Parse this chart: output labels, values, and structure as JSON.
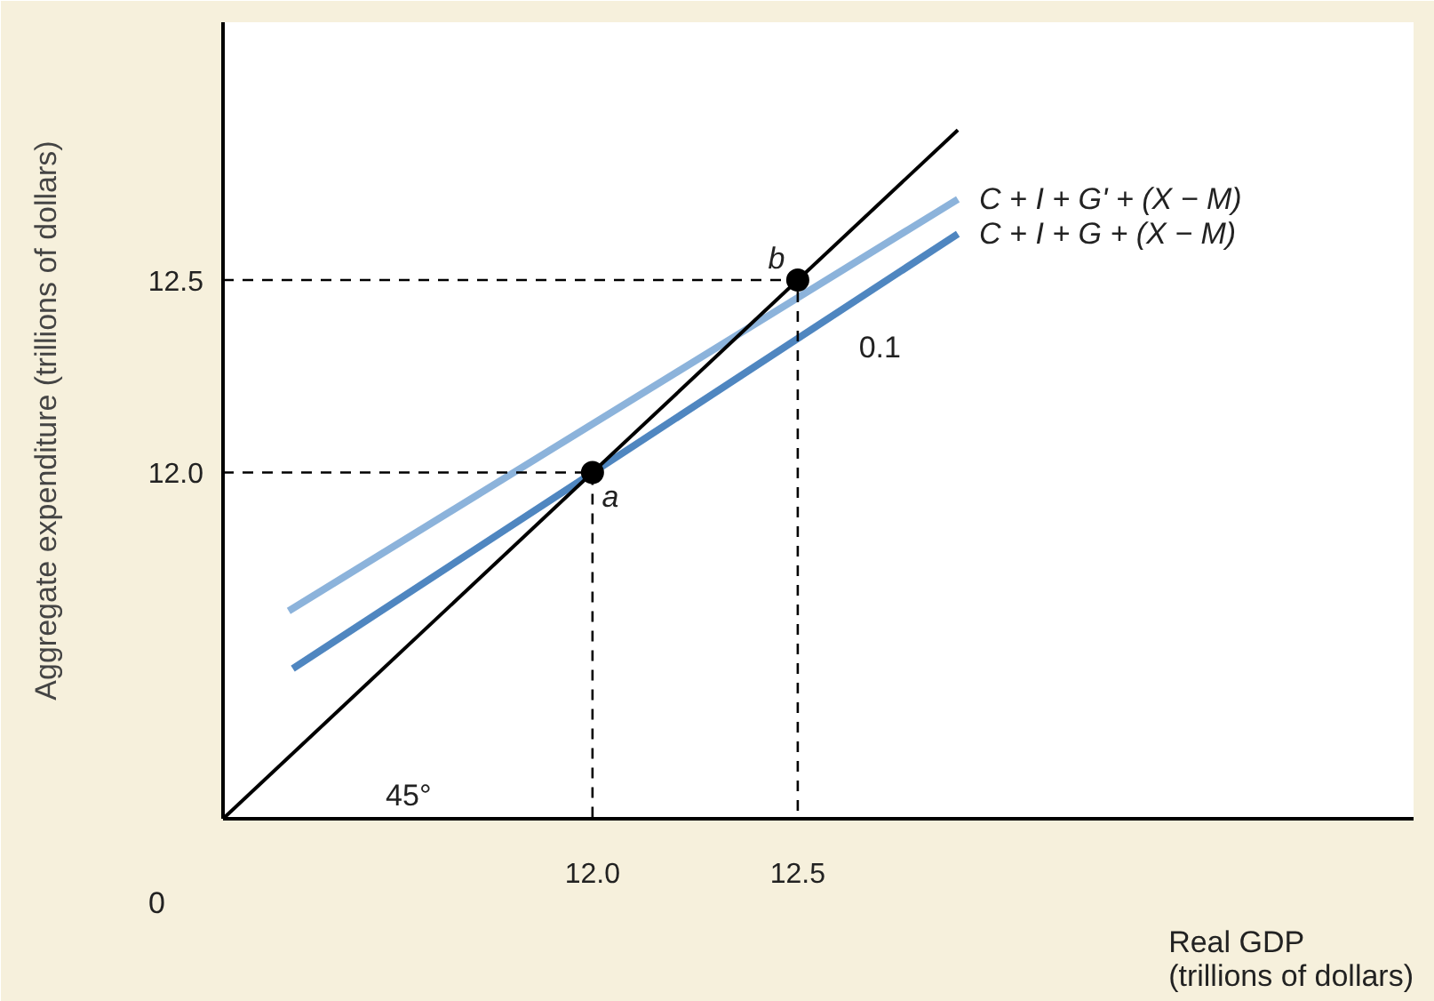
{
  "chart_data": {
    "type": "line",
    "xlabel": "Real GDP\n(trillions of dollars)",
    "ylabel": "Aggregate expenditure (trillions of dollars)",
    "xlim": [
      11.1,
      14.0
    ],
    "ylim": [
      11.1,
      13.17
    ],
    "xticks": [
      {
        "value": 12.0,
        "label": "12.0"
      },
      {
        "value": 12.5,
        "label": "12.5"
      }
    ],
    "yticks": [
      {
        "value": 12.0,
        "label": "12.0"
      },
      {
        "value": 12.5,
        "label": "12.5"
      }
    ],
    "grid": false,
    "series": [
      {
        "name": "C + I + G' + (X − M)",
        "color": "#8cb3db",
        "x": [
          11.26,
          12.89
        ],
        "values": [
          11.64,
          12.71
        ]
      },
      {
        "name": "C + I + G + (X − M)",
        "color": "#4f86c0",
        "x": [
          11.27,
          12.89
        ],
        "values": [
          11.49,
          12.62
        ]
      },
      {
        "color": "#000000",
        "x": [
          11.1,
          12.89
        ],
        "values": [
          11.1,
          12.89
        ]
      },
      {
        "color": "#000000",
        "line_style": "dashed",
        "x": [
          11.1,
          12.0,
          12.0
        ],
        "values": [
          12.0,
          12.0,
          11.1
        ]
      },
      {
        "color": "#000000",
        "line_style": "dashed",
        "x": [
          11.1,
          12.5,
          12.5
        ],
        "values": [
          12.5,
          12.5,
          11.1
        ]
      },
      {
        "type": "scatter",
        "marker": "circle",
        "color": "#000000",
        "x": [
          12.0,
          12.5
        ],
        "values": [
          12.0,
          12.5
        ]
      }
    ],
    "annotations": [
      {
        "text": "a",
        "x": 12.0,
        "y": 12.0
      },
      {
        "text": "b",
        "x": 12.5,
        "y": 12.5
      },
      "0.1",
      "45°",
      "0"
    ]
  }
}
